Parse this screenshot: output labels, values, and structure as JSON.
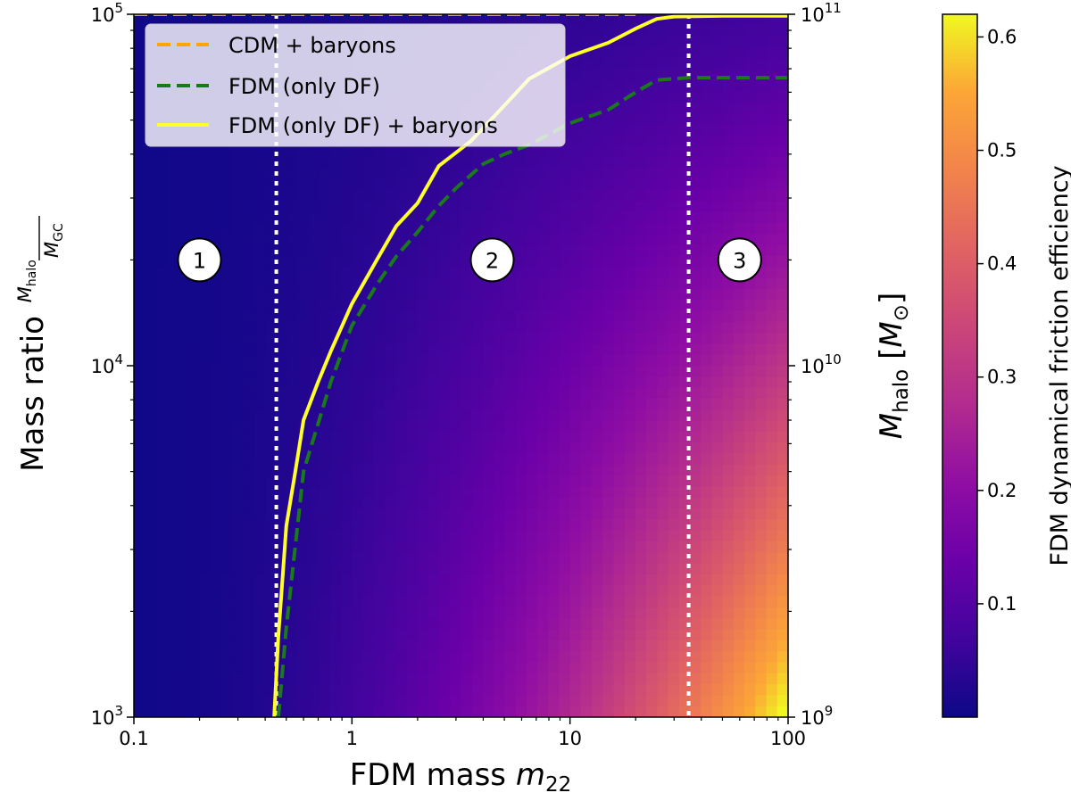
{
  "chart_data": {
    "type": "heatmap",
    "x_scale": "log",
    "y_scale": "log",
    "xlim": [
      0.1,
      100
    ],
    "ylim": [
      1000,
      100000
    ],
    "y2lim": [
      1000000000,
      100000000000
    ],
    "xlabel": "FDM mass m22",
    "ylabel": "Mass ratio Mhalo/MGC",
    "y2label": "Mhalo [M⊙]",
    "colorbar_label": "FDM dynamical friction efficiency",
    "colorbar_range": [
      0.0,
      0.62
    ],
    "colormap": "plasma",
    "x_ticks": [
      {
        "value": 0.1,
        "label": "0.1"
      },
      {
        "value": 1,
        "label": "1"
      },
      {
        "value": 10,
        "label": "10"
      },
      {
        "value": 100,
        "label": "100"
      }
    ],
    "y_ticks": [
      {
        "value": 1000,
        "base": "10",
        "exp": "3"
      },
      {
        "value": 10000,
        "base": "10",
        "exp": "4"
      },
      {
        "value": 100000,
        "base": "10",
        "exp": "5"
      }
    ],
    "y2_ticks": [
      {
        "value": 1000000000,
        "base": "10",
        "exp": "9"
      },
      {
        "value": 10000000000,
        "base": "10",
        "exp": "10"
      },
      {
        "value": 100000000000,
        "base": "10",
        "exp": "11"
      }
    ],
    "colorbar_ticks": [
      "0.1",
      "0.2",
      "0.3",
      "0.4",
      "0.5",
      "0.6"
    ],
    "colorbar_tick_values": [
      0.1,
      0.2,
      0.3,
      0.4,
      0.5,
      0.6
    ],
    "series": [
      {
        "name": "CDM + baryons",
        "color": "#ffa500",
        "style": "dashed",
        "x": [
          0.1,
          0.5,
          1,
          5,
          10,
          20
        ],
        "y": [
          100000,
          100000,
          100000,
          100000,
          100000,
          100000
        ]
      },
      {
        "name": "FDM (only DF)",
        "color": "#1a7a1a",
        "style": "dashed",
        "x": [
          0.46,
          0.5,
          0.6,
          0.8,
          1.0,
          1.3,
          1.6,
          2.0,
          2.5,
          3.0,
          4.0,
          5.0,
          6.5,
          8.0,
          10,
          15,
          20,
          25,
          35,
          50,
          70,
          100
        ],
        "y": [
          1000,
          1800,
          5000,
          9000,
          13000,
          17000,
          20500,
          24000,
          28500,
          32000,
          37500,
          40000,
          42500,
          45500,
          49000,
          53500,
          60000,
          65000,
          66000,
          66000,
          66000,
          66000
        ]
      },
      {
        "name": "FDM (only DF) + baryons",
        "color": "#ffff2a",
        "style": "solid",
        "x": [
          0.44,
          0.46,
          0.5,
          0.55,
          0.6,
          0.7,
          0.8,
          1.0,
          1.3,
          1.6,
          2.0,
          2.5,
          3.5,
          5.0,
          6.5,
          10,
          15,
          20,
          25,
          30,
          50,
          70,
          100
        ],
        "y": [
          1000,
          1700,
          3500,
          5000,
          7000,
          9000,
          11000,
          15000,
          20000,
          25000,
          29000,
          37000,
          43500,
          55000,
          65500,
          76000,
          83000,
          91000,
          97000,
          98500,
          99000,
          99000,
          99000
        ]
      }
    ],
    "vertical_lines": [
      {
        "x": 0.45,
        "color": "#ffffff",
        "style": "dotted"
      },
      {
        "x": 35,
        "color": "#ffffff",
        "style": "dotted"
      }
    ],
    "region_labels": [
      {
        "text": "1",
        "x": 0.2,
        "y": 20000
      },
      {
        "text": "2",
        "x": 4.4,
        "y": 20000
      },
      {
        "text": "3",
        "x": 60,
        "y": 20000
      }
    ],
    "legend_position": "top-left"
  }
}
